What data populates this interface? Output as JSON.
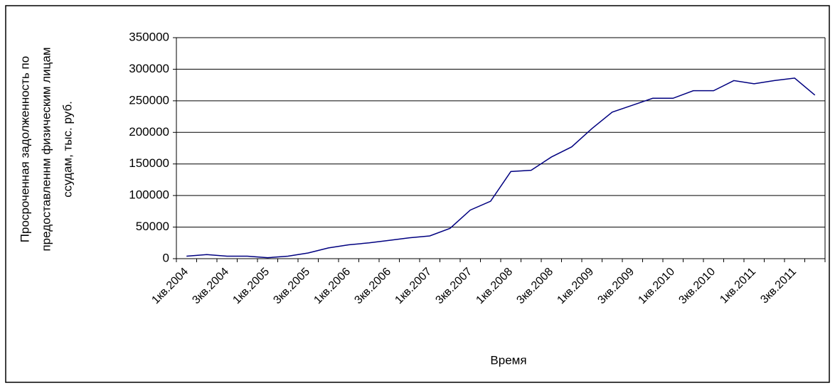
{
  "chart_data": {
    "type": "line",
    "y_label": [
      "Просроченная задолженность по",
      "предоставленнм физическим лицам",
      "ссудам, тыс. руб."
    ],
    "x_label": "Время",
    "categories": [
      "1кв.2004",
      null,
      "3кв.2004",
      null,
      "1кв.2005",
      null,
      "3кв.2005",
      null,
      "1кв.2006",
      null,
      "3кв.2006",
      null,
      "1кв.2007",
      null,
      "3кв.2007",
      null,
      "1кв.2008",
      null,
      "3кв.2008",
      null,
      "1кв.2009",
      null,
      "3кв.2009",
      null,
      "1кв.2010",
      null,
      "3кв.2010",
      null,
      "1кв.2011",
      null,
      "3кв.2011",
      null
    ],
    "values": [
      4000,
      6500,
      4000,
      4000,
      1500,
      4000,
      9000,
      17000,
      22000,
      25000,
      29000,
      33000,
      36000,
      48000,
      77000,
      91000,
      138000,
      140000,
      161000,
      177000,
      206000,
      232000,
      243000,
      254000,
      254000,
      266000,
      266000,
      282000,
      277000,
      282000,
      286000,
      259000
    ],
    "color": "#000080",
    "ylim": [
      0,
      350000
    ],
    "yticks": [
      0,
      50000,
      100000,
      150000,
      200000,
      250000,
      300000,
      350000
    ],
    "grid": true
  }
}
